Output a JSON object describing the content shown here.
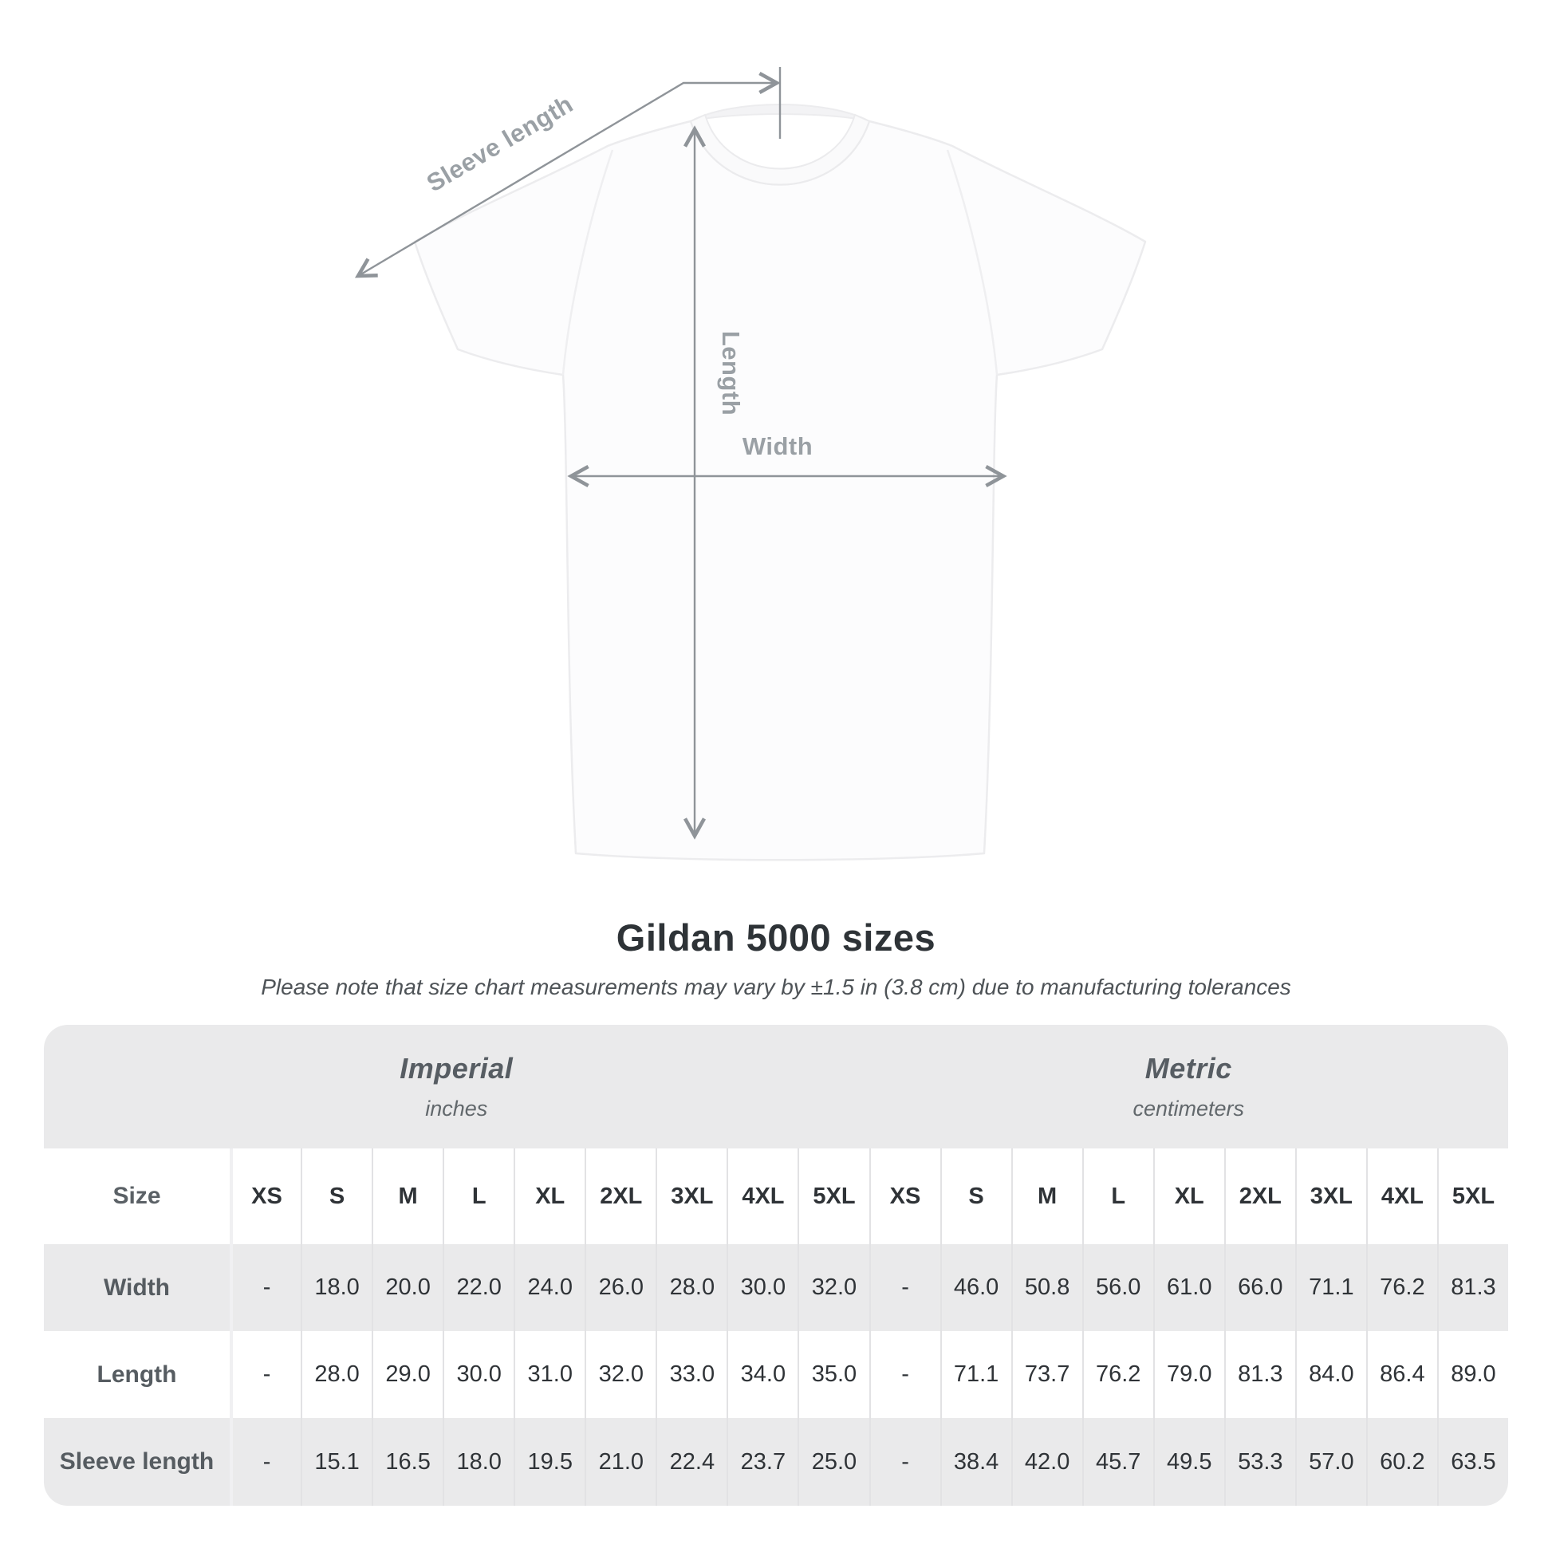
{
  "diagram": {
    "sleeve_length_label": "Sleeve length",
    "length_label": "Length",
    "width_label": "Width"
  },
  "heading": {
    "title": "Gildan 5000 sizes",
    "note": "Please note that size chart measurements may vary by ±1.5 in (3.8 cm) due to manufacturing tolerances"
  },
  "table": {
    "size_col_header": "Size",
    "unit_groups": [
      {
        "name": "Imperial",
        "unit": "inches",
        "sizes": [
          "XS",
          "S",
          "M",
          "L",
          "XL",
          "2XL",
          "3XL",
          "4XL",
          "5XL"
        ]
      },
      {
        "name": "Metric",
        "unit": "centimeters",
        "sizes": [
          "XS",
          "S",
          "M",
          "L",
          "XL",
          "2XL",
          "3XL",
          "4XL",
          "5XL"
        ]
      }
    ],
    "rows": [
      {
        "label": "Width",
        "imperial": [
          "-",
          "18.0",
          "20.0",
          "22.0",
          "24.0",
          "26.0",
          "28.0",
          "30.0",
          "32.0"
        ],
        "metric": [
          "-",
          "46.0",
          "50.8",
          "56.0",
          "61.0",
          "66.0",
          "71.1",
          "76.2",
          "81.3"
        ]
      },
      {
        "label": "Length",
        "imperial": [
          "-",
          "28.0",
          "29.0",
          "30.0",
          "31.0",
          "32.0",
          "33.0",
          "34.0",
          "35.0"
        ],
        "metric": [
          "-",
          "71.1",
          "73.7",
          "76.2",
          "79.0",
          "81.3",
          "84.0",
          "86.4",
          "89.0"
        ]
      },
      {
        "label": "Sleeve length",
        "imperial": [
          "-",
          "15.1",
          "16.5",
          "18.0",
          "19.5",
          "21.0",
          "22.4",
          "23.7",
          "25.0"
        ],
        "metric": [
          "-",
          "38.4",
          "42.0",
          "45.7",
          "49.5",
          "53.3",
          "57.0",
          "60.2",
          "63.5"
        ]
      }
    ]
  },
  "colors": {
    "dimension_line": "#8f9499",
    "dimension_label": "#9aa0a5",
    "band_bg": "#eaeaeb",
    "row_alt_bg": "#eaeaeb",
    "title_text": "#2e3337",
    "note_text": "#4e5357",
    "header_text": "#5b6166",
    "value_text": "#2f3337"
  }
}
